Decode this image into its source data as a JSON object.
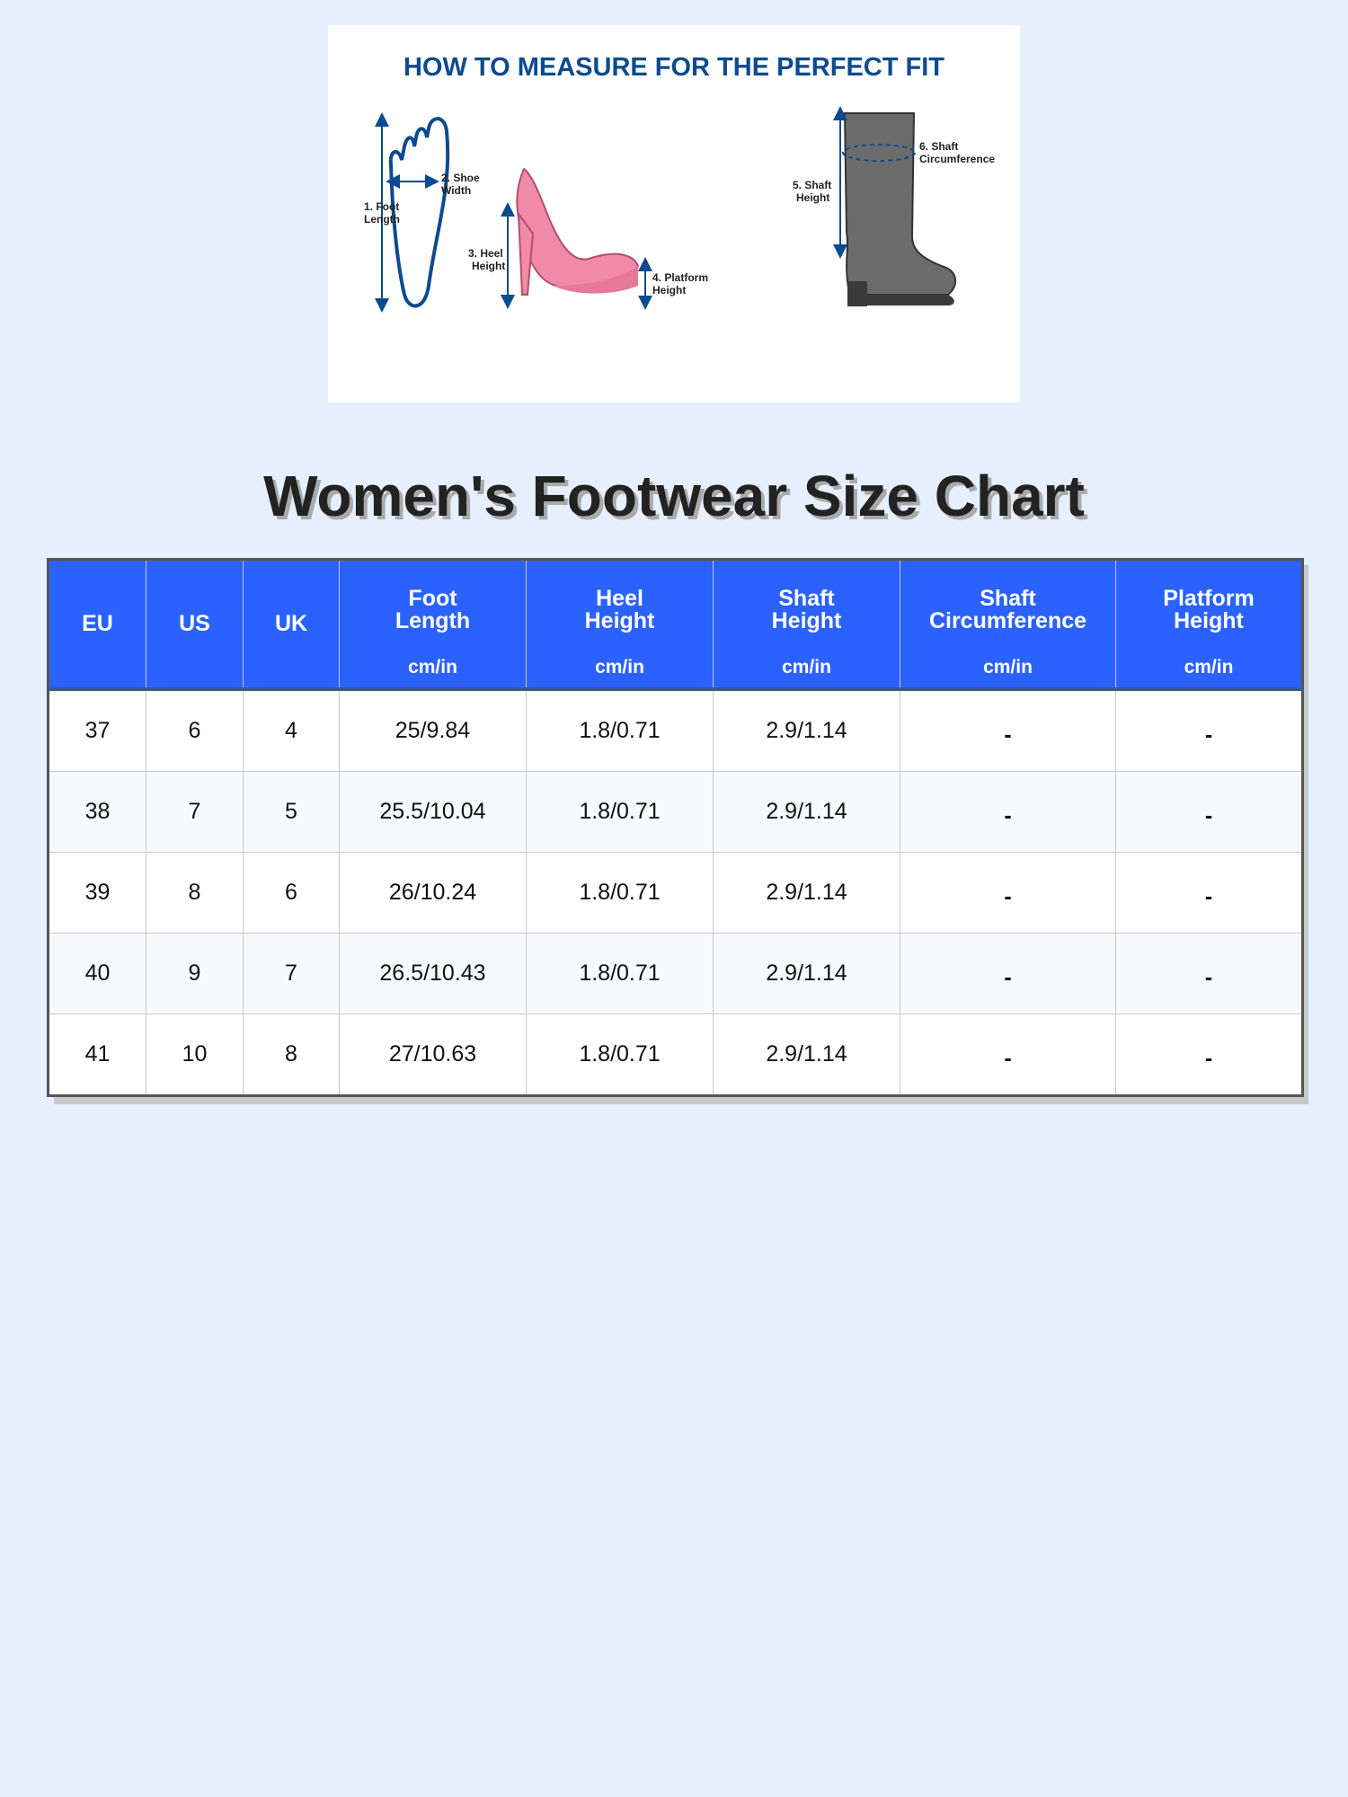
{
  "guide": {
    "heading": "HOW TO MEASURE FOR THE PERFECT FIT",
    "labels": {
      "foot_length": [
        "1. Foot",
        "Length"
      ],
      "shoe_width": [
        "2. Shoe",
        "Width"
      ],
      "heel_height": [
        "3. Heel",
        "Height"
      ],
      "platform_height": [
        "4. Platform",
        "Height"
      ],
      "shaft_height": [
        "5. Shaft",
        "Height"
      ],
      "shaft_circumference": [
        "6. Shaft",
        "Circumference"
      ]
    },
    "colors": {
      "heading": "#0d4a8f",
      "arrows": "#0d4a8f",
      "pump": "#f08aa8",
      "boot": "#6b6b6b"
    }
  },
  "title": "Women's Footwear Size Chart",
  "table": {
    "colors": {
      "header_bg": "#2b62ff",
      "header_text": "#ffffff"
    },
    "columns": [
      {
        "name": "EU",
        "unit": ""
      },
      {
        "name": "US",
        "unit": ""
      },
      {
        "name": "UK",
        "unit": ""
      },
      {
        "name": "Foot Length",
        "unit": "cm/in"
      },
      {
        "name": "Heel Height",
        "unit": "cm/in"
      },
      {
        "name": "Shaft Height",
        "unit": "cm/in"
      },
      {
        "name": "Shaft Circumference",
        "unit": "cm/in"
      },
      {
        "name": "Platform Height",
        "unit": "cm/in"
      }
    ],
    "rows": [
      [
        "37",
        "6",
        "4",
        "25/9.84",
        "1.8/0.71",
        "2.9/1.14",
        "-",
        "-"
      ],
      [
        "38",
        "7",
        "5",
        "25.5/10.04",
        "1.8/0.71",
        "2.9/1.14",
        "-",
        "-"
      ],
      [
        "39",
        "8",
        "6",
        "26/10.24",
        "1.8/0.71",
        "2.9/1.14",
        "-",
        "-"
      ],
      [
        "40",
        "9",
        "7",
        "26.5/10.43",
        "1.8/0.71",
        "2.9/1.14",
        "-",
        "-"
      ],
      [
        "41",
        "10",
        "8",
        "27/10.63",
        "1.8/0.71",
        "2.9/1.14",
        "-",
        "-"
      ]
    ]
  }
}
